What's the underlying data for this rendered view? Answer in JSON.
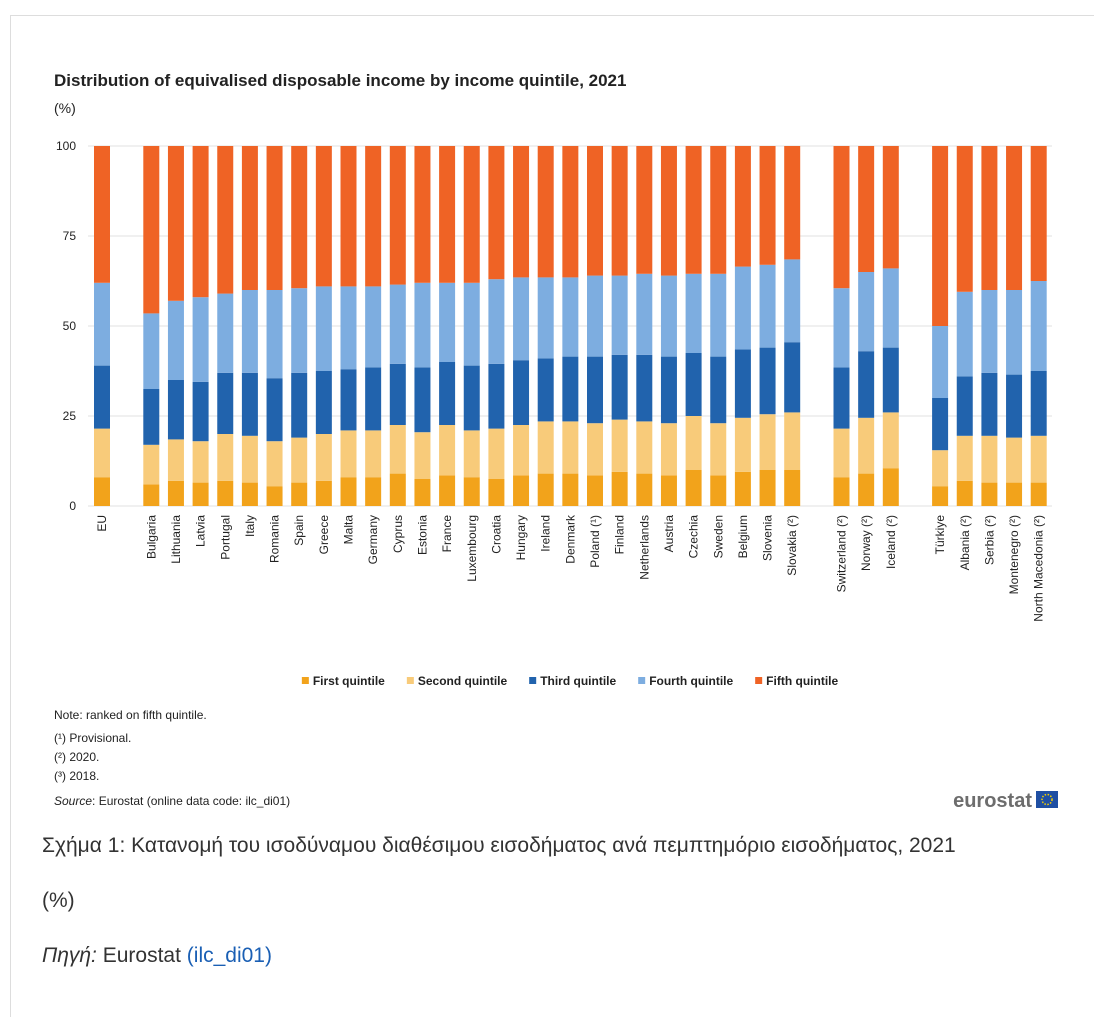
{
  "chart_data": {
    "type": "stacked_bar",
    "title": "Distribution of equivalised disposable income by income quintile, 2021",
    "y_label": "(%)",
    "categories": [
      "EU",
      null,
      "Bulgaria",
      "Lithuania",
      "Latvia",
      "Portugal",
      "Italy",
      "Romania",
      "Spain",
      "Greece",
      "Malta",
      "Germany",
      "Cyprus",
      "Estonia",
      "France",
      "Luxembourg",
      "Croatia",
      "Hungary",
      "Ireland",
      "Denmark",
      "Poland (¹)",
      "Finland",
      "Netherlands",
      "Austria",
      "Czechia",
      "Sweden",
      "Belgium",
      "Slovenia",
      "Slovakia (²)",
      null,
      "Switzerland (²)",
      "Norway (²)",
      "Iceland (²)",
      null,
      "Türkiye",
      "Albania (²)",
      "Serbia (²)",
      "Montenegro (²)",
      "North Macedonia (²)"
    ],
    "series": [
      {
        "name": "First quintile",
        "color": "#f2a31b",
        "values": [
          8,
          null,
          6,
          7,
          6.5,
          7,
          6.5,
          5.5,
          6.5,
          7,
          8,
          8,
          9,
          7.5,
          8.5,
          8,
          7.5,
          8.5,
          9,
          9,
          8.5,
          9.5,
          9,
          8.5,
          10,
          8.5,
          9.5,
          10,
          10,
          null,
          8,
          9,
          10.5,
          null,
          5.5,
          7,
          6.5,
          6.5,
          6.5
        ]
      },
      {
        "name": "Second quintile",
        "color": "#f8cb7a",
        "values": [
          13.5,
          null,
          11,
          11.5,
          11.5,
          13,
          13,
          12.5,
          12.5,
          13,
          13,
          13,
          13.5,
          13,
          14,
          13,
          14,
          14,
          14.5,
          14.5,
          14.5,
          14.5,
          14.5,
          14.5,
          15,
          14.5,
          15,
          15.5,
          16,
          null,
          13.5,
          15.5,
          15.5,
          null,
          10,
          12.5,
          13,
          12.5,
          13
        ]
      },
      {
        "name": "Third quintile",
        "color": "#2163ad",
        "values": [
          17.5,
          null,
          15.5,
          16.5,
          16.5,
          17,
          17.5,
          17.5,
          18,
          17.5,
          17,
          17.5,
          17,
          18,
          17.5,
          18,
          18,
          18,
          17.5,
          18,
          18.5,
          18,
          18.5,
          18.5,
          17.5,
          18.5,
          19,
          18.5,
          19.5,
          null,
          17,
          18.5,
          18,
          null,
          14.5,
          16.5,
          17.5,
          17.5,
          18
        ]
      },
      {
        "name": "Fourth quintile",
        "color": "#7dade0",
        "values": [
          23,
          null,
          21,
          22,
          23.5,
          22,
          23,
          24.5,
          23.5,
          23.5,
          23,
          22.5,
          22,
          23.5,
          22,
          23,
          23.5,
          23,
          22.5,
          22,
          22.5,
          22,
          22.5,
          22.5,
          22,
          23,
          23,
          23,
          23,
          null,
          22,
          22,
          22,
          null,
          20,
          23.5,
          23,
          23.5,
          25
        ]
      },
      {
        "name": "Fifth quintile",
        "color": "#ef6325",
        "values": [
          38,
          null,
          46.5,
          43,
          42,
          41,
          40,
          40,
          39.5,
          39,
          39,
          39,
          38.5,
          38,
          38,
          38,
          37,
          36.5,
          36.5,
          36.5,
          36,
          36,
          35.5,
          36,
          35.5,
          35.5,
          33.5,
          33,
          31.5,
          null,
          39.5,
          35,
          34,
          null,
          50,
          40.5,
          40,
          40,
          37.5
        ]
      }
    ],
    "ylim": [
      0,
      100
    ],
    "yticks": [
      0,
      25,
      50,
      75,
      100
    ],
    "grid": true
  },
  "notes": [
    "Note: ranked on fifth quintile.",
    "(¹) Provisional.",
    "(²) 2020.",
    "(³) 2018."
  ],
  "source": {
    "label": "Source",
    "text": ": Eurostat (online data code: ilc_di01)"
  },
  "logo": "eurostat",
  "caption": {
    "figure": "Σχήμα 1: Κατανομή του ισοδύναμου διαθέσιμου εισοδήματος ανά πεμπτημόριο εισοδήματος, 2021",
    "unit": "(%)",
    "source_label": "Πηγή:",
    "source_text": "Eurostat",
    "source_link": "(ilc_di01)"
  }
}
